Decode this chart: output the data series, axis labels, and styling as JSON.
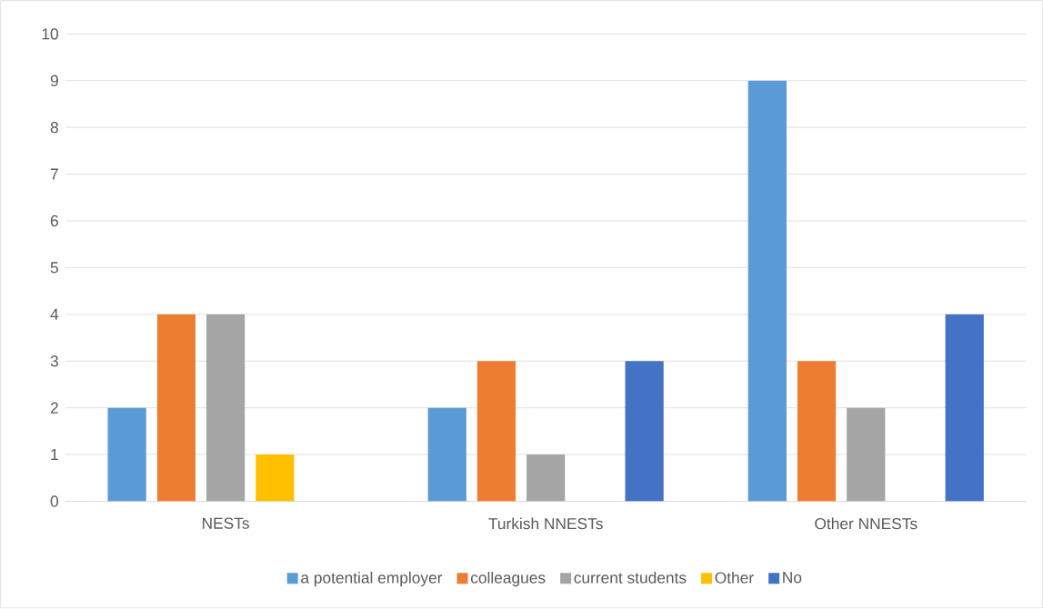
{
  "chart_data": {
    "type": "bar",
    "categories": [
      "NESTs",
      "Turkish NNESTs",
      "Other NNESTs"
    ],
    "series": [
      {
        "name": "a potential employer",
        "color": "#5b9bd5",
        "values": [
          2,
          2,
          9
        ]
      },
      {
        "name": "colleagues",
        "color": "#ed7d31",
        "values": [
          4,
          3,
          3
        ]
      },
      {
        "name": "current students",
        "color": "#a5a5a5",
        "values": [
          4,
          1,
          2
        ]
      },
      {
        "name": "Other",
        "color": "#ffc000",
        "values": [
          1,
          0,
          0
        ]
      },
      {
        "name": "No",
        "color": "#4472c4",
        "values": [
          0,
          3,
          4
        ]
      }
    ],
    "ylim": [
      0,
      10
    ],
    "yticks": [
      0,
      1,
      2,
      3,
      4,
      5,
      6,
      7,
      8,
      9,
      10
    ],
    "grid": "y",
    "legend": "bottom"
  }
}
